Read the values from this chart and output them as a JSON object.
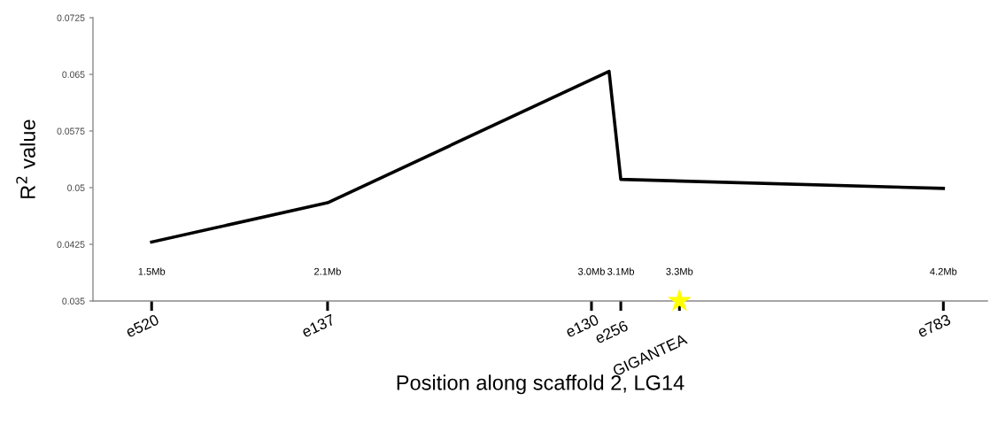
{
  "chart_data": {
    "type": "line",
    "xlabel": "Position along scaffold 2, LG14",
    "ylabel": "R$^{2}$ value",
    "series": [
      {
        "color": "#000000",
        "x": [
          1.5,
          2.1,
          3.06,
          3.1,
          4.2
        ],
        "values": [
          0.0428,
          0.048,
          0.0654,
          0.0511,
          0.0499
        ]
      },
      {
        "type": "scatter",
        "color": "#ffff00",
        "marker": "star",
        "x": [
          3.3
        ],
        "values": [
          0.035
        ]
      }
    ],
    "xlim": [
      1.3,
      4.35
    ],
    "ylim": [
      0.035,
      0.0725
    ],
    "xticks": [
      {
        "value": 1.5,
        "label": "1.5Mb"
      },
      {
        "value": 2.1,
        "label": "2.1Mb"
      },
      {
        "value": 3.0,
        "label": "3.0Mb"
      },
      {
        "value": 3.1,
        "label": "3.1Mb"
      },
      {
        "value": 3.3,
        "label": "3.3Mb"
      },
      {
        "value": 4.2,
        "label": "4.2Mb"
      }
    ],
    "yticks": [
      0.035,
      0.0425,
      0.05,
      0.0575,
      0.065,
      0.0725
    ],
    "annotations": [
      "e520",
      "e137",
      "e130",
      "e256",
      "GIGANTEA",
      "e783"
    ],
    "grid": false,
    "legend": false
  }
}
